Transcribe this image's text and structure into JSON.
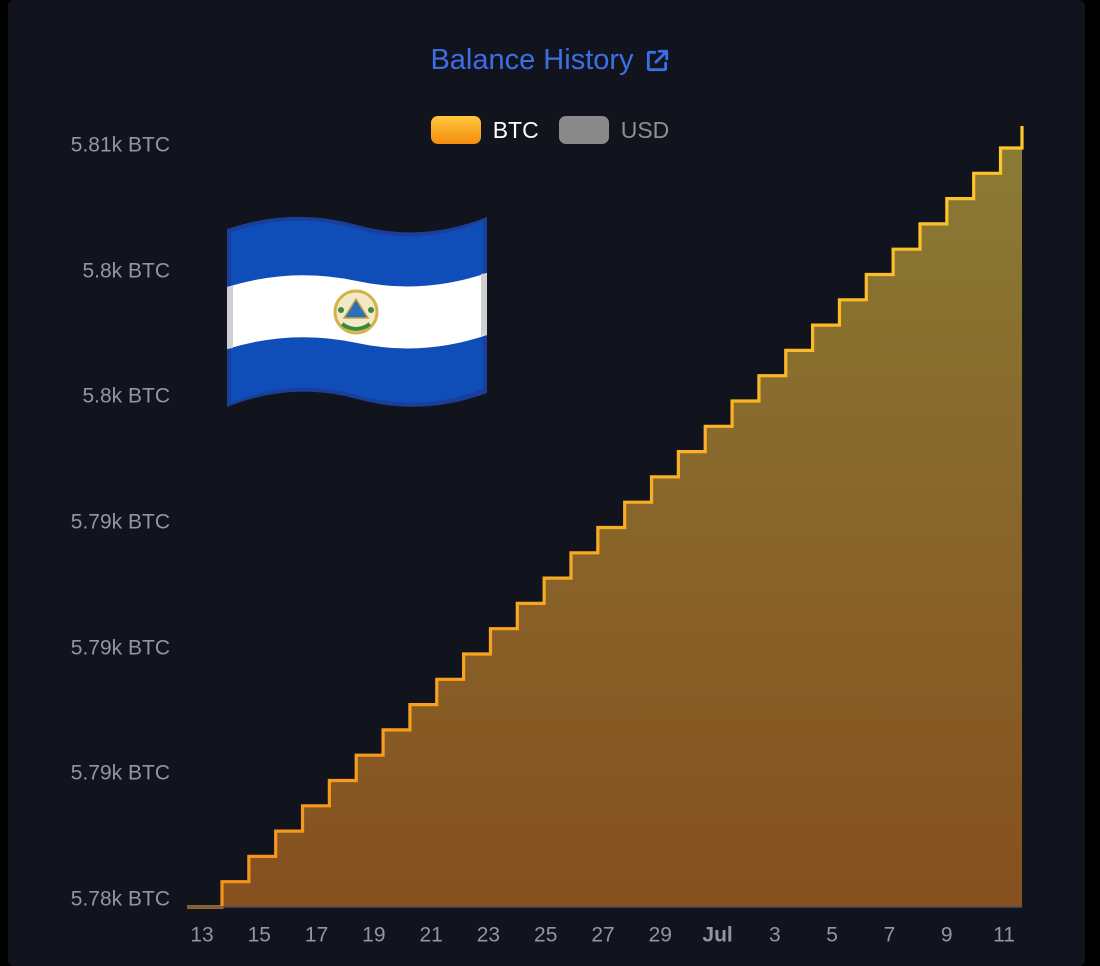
{
  "header": {
    "title": "Balance History",
    "link_icon": "external-link-icon"
  },
  "legend": [
    {
      "label": "BTC",
      "color": "#f7a21c",
      "active": true
    },
    {
      "label": "USD",
      "color": "#8a8a8a",
      "active": false
    }
  ],
  "decoration": {
    "icon": "el-salvador-flag-icon"
  },
  "colors": {
    "background": "#11141d",
    "line": "#f7b52a",
    "fill_top": "#8a7a34",
    "fill_bottom": "#86501f",
    "tick": "#9096a3",
    "title": "#3d6ee6"
  },
  "chart_data": {
    "type": "line",
    "step": true,
    "title": "Balance History",
    "y_tick_labels": [
      "5.78k BTC",
      "5.79k BTC",
      "5.79k BTC",
      "5.79k BTC",
      "5.8k BTC",
      "5.8k BTC",
      "5.81k BTC"
    ],
    "ylim": [
      0,
      6
    ],
    "x_tick_labels": [
      "13",
      "15",
      "17",
      "19",
      "21",
      "23",
      "25",
      "27",
      "29",
      "Jul",
      "3",
      "5",
      "7",
      "9",
      "11"
    ],
    "x_dates": [
      "Jun 13",
      "Jun 15",
      "Jun 17",
      "Jun 19",
      "Jun 21",
      "Jun 23",
      "Jun 25",
      "Jun 27",
      "Jun 29",
      "Jul 1",
      "Jul 3",
      "Jul 5",
      "Jul 7",
      "Jul 9",
      "Jul 11"
    ],
    "legend_position": "top-center",
    "grid": false,
    "series": [
      {
        "name": "BTC",
        "x_start": "Jun 13",
        "x_end": "Jul 11",
        "values": [
          0,
          0.2,
          0.4,
          0.6,
          0.8,
          1.0,
          1.2,
          1.4,
          1.6,
          1.8,
          2.0,
          2.2,
          2.4,
          2.6,
          2.8,
          3.0,
          3.2,
          3.4,
          3.6,
          3.8,
          4.0,
          4.2,
          4.4,
          4.6,
          4.8,
          5.0,
          5.2,
          5.4,
          5.6,
          5.8,
          6.0
        ]
      }
    ]
  }
}
